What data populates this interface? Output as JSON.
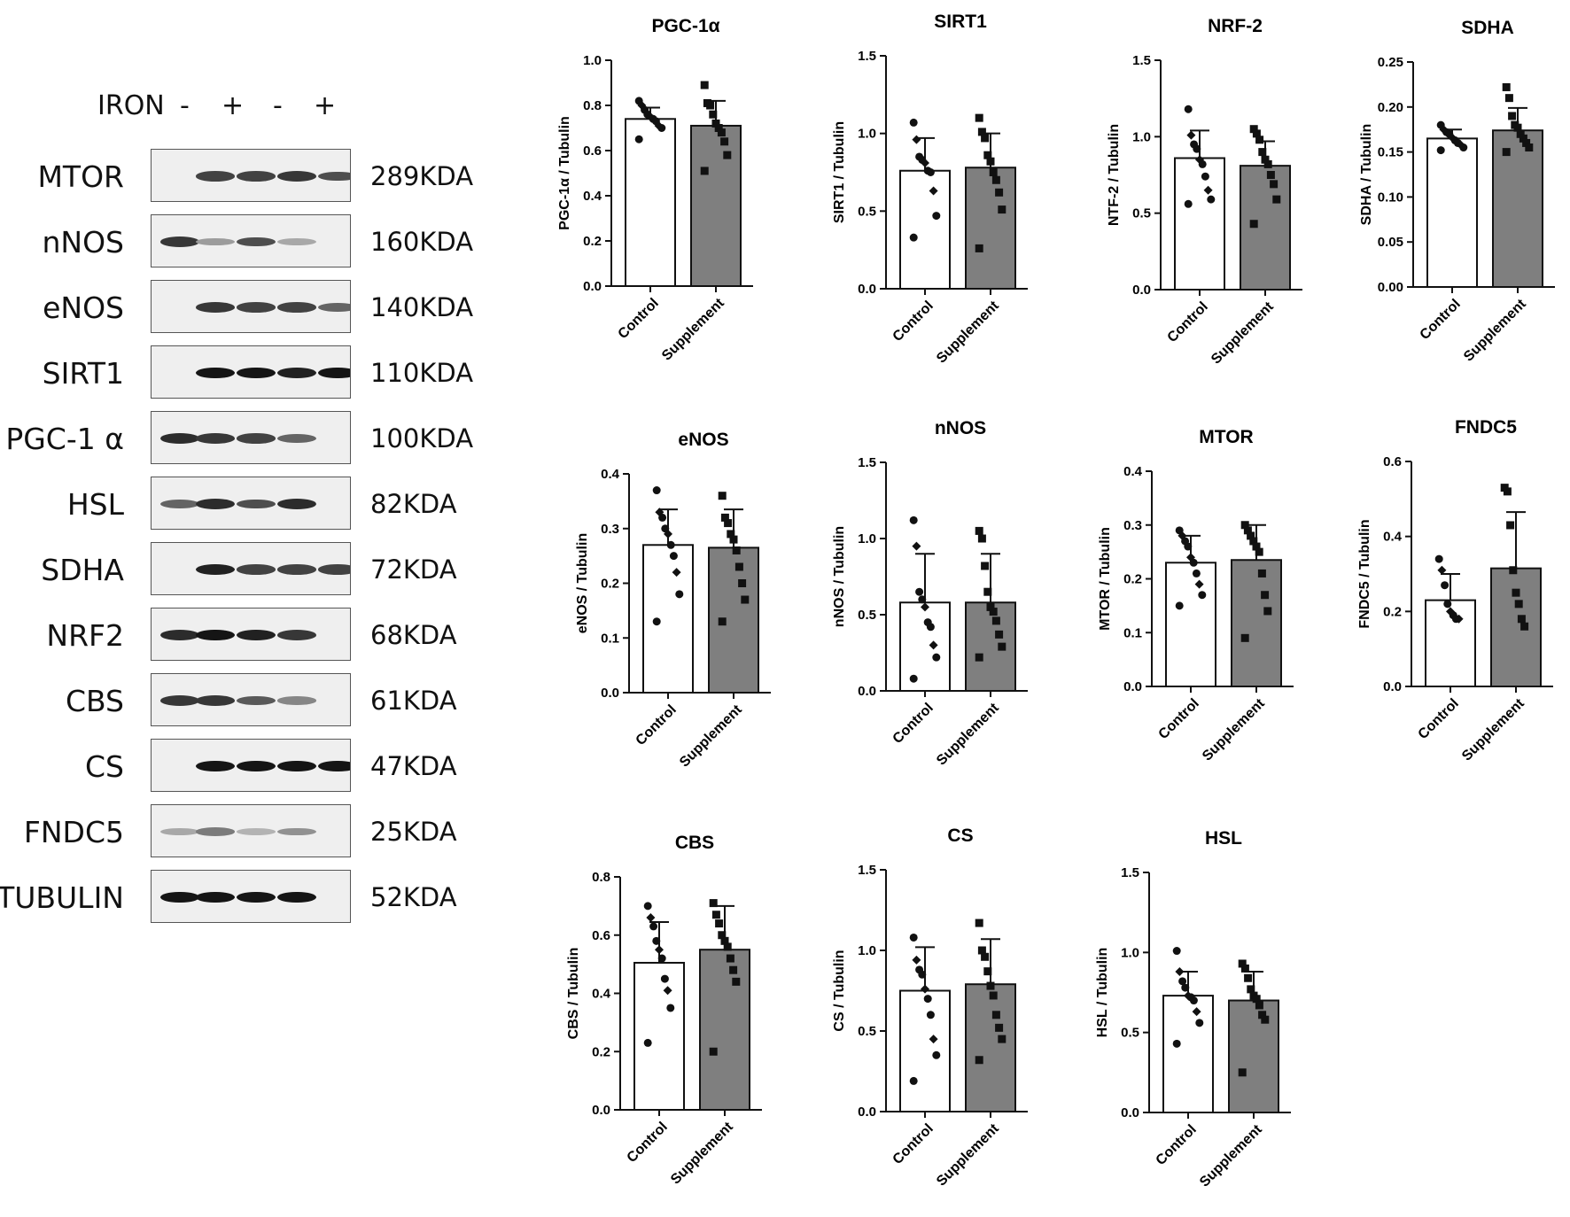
{
  "blot": {
    "iron_label": "IRON",
    "lane_signs": [
      "-",
      "+",
      "-",
      "+"
    ],
    "rows": [
      {
        "label": "MTOR",
        "kda": "289KDA",
        "bands": [
          0,
          0.75,
          0.75,
          0.8,
          0.7
        ]
      },
      {
        "label": "nNOS",
        "kda": "160KDA",
        "bands": [
          0.8,
          0.35,
          0.7,
          0.3,
          0
        ]
      },
      {
        "label": "eNOS",
        "kda": "140KDA",
        "bands": [
          0,
          0.8,
          0.75,
          0.75,
          0.6
        ]
      },
      {
        "label": "SIRT1",
        "kda": "110KDA",
        "bands": [
          0,
          0.95,
          0.95,
          0.9,
          0.95
        ]
      },
      {
        "label": "PGC-1 α",
        "kda": "100KDA",
        "bands": [
          0.85,
          0.8,
          0.75,
          0.6,
          0
        ]
      },
      {
        "label": "HSL",
        "kda": "82KDA",
        "bands": [
          0.6,
          0.85,
          0.7,
          0.85,
          0
        ]
      },
      {
        "label": "SDHA",
        "kda": "72KDA",
        "bands": [
          0,
          0.9,
          0.75,
          0.75,
          0.75
        ]
      },
      {
        "label": "NRF2",
        "kda": "68KDA",
        "bands": [
          0.85,
          0.95,
          0.9,
          0.8,
          0
        ]
      },
      {
        "label": "CBS",
        "kda": "61KDA",
        "bands": [
          0.8,
          0.8,
          0.65,
          0.45,
          0
        ]
      },
      {
        "label": "CS",
        "kda": "47KDA",
        "bands": [
          0,
          0.95,
          0.95,
          0.95,
          0.95
        ]
      },
      {
        "label": "FNDC5",
        "kda": "25KDA",
        "bands": [
          0.3,
          0.5,
          0.25,
          0.4,
          0
        ]
      },
      {
        "label": "TUBULIN",
        "kda": "52KDA",
        "bands": [
          0.95,
          0.95,
          0.95,
          0.95,
          0
        ]
      }
    ]
  },
  "chart_data": [
    {
      "type": "bar",
      "title": "PGC-1α",
      "ylabel": "PGC-1α / Tubulin",
      "categories": [
        "Control",
        "Supplement"
      ],
      "values": [
        0.74,
        0.71
      ],
      "errors": [
        0.05,
        0.11
      ],
      "ylim": [
        0,
        1.0
      ],
      "yticks": [
        0.0,
        0.2,
        0.4,
        0.6,
        0.8,
        1.0
      ],
      "tick_decimals": 1,
      "points": [
        [
          0.82,
          0.8,
          0.78,
          0.76,
          0.75,
          0.74,
          0.73,
          0.71,
          0.7,
          0.65
        ],
        [
          0.89,
          0.81,
          0.8,
          0.76,
          0.72,
          0.7,
          0.68,
          0.64,
          0.58,
          0.51
        ]
      ]
    },
    {
      "type": "bar",
      "title": "SIRT1",
      "ylabel": "SIRT1 / Tubulin",
      "categories": [
        "Control",
        "Supplement"
      ],
      "values": [
        0.76,
        0.78
      ],
      "errors": [
        0.21,
        0.22
      ],
      "ylim": [
        0,
        1.5
      ],
      "yticks": [
        0.0,
        0.5,
        1.0,
        1.5
      ],
      "tick_decimals": 1,
      "points": [
        [
          1.07,
          0.96,
          0.85,
          0.83,
          0.81,
          0.76,
          0.75,
          0.63,
          0.47,
          0.33
        ],
        [
          1.1,
          1.01,
          0.97,
          0.86,
          0.82,
          0.75,
          0.7,
          0.62,
          0.51,
          0.26
        ]
      ]
    },
    {
      "type": "bar",
      "title": "NRF-2",
      "ylabel": "NTF-2 / Tubulin",
      "categories": [
        "Control",
        "Supplement"
      ],
      "values": [
        0.86,
        0.81
      ],
      "errors": [
        0.18,
        0.16
      ],
      "ylim": [
        0,
        1.5
      ],
      "yticks": [
        0.0,
        0.5,
        1.0,
        1.5
      ],
      "tick_decimals": 1,
      "points": [
        [
          1.18,
          1.01,
          0.95,
          0.92,
          0.85,
          0.82,
          0.74,
          0.65,
          0.59,
          0.56
        ],
        [
          1.05,
          1.02,
          0.98,
          0.9,
          0.85,
          0.82,
          0.75,
          0.69,
          0.59,
          0.43
        ]
      ]
    },
    {
      "type": "bar",
      "title": "SDHA",
      "ylabel": "SDHA / Tubulin",
      "categories": [
        "Control",
        "Supplement"
      ],
      "values": [
        0.165,
        0.174
      ],
      "errors": [
        0.01,
        0.025
      ],
      "ylim": [
        0,
        0.25
      ],
      "yticks": [
        0.0,
        0.05,
        0.1,
        0.15,
        0.2,
        0.25
      ],
      "tick_decimals": 2,
      "points": [
        [
          0.18,
          0.175,
          0.172,
          0.17,
          0.166,
          0.163,
          0.16,
          0.158,
          0.155,
          0.152
        ],
        [
          0.222,
          0.21,
          0.19,
          0.18,
          0.177,
          0.17,
          0.165,
          0.16,
          0.155,
          0.15
        ]
      ]
    },
    {
      "type": "bar",
      "title": "eNOS",
      "ylabel": "eNOS / Tubulin",
      "categories": [
        "Control",
        "Supplement"
      ],
      "values": [
        0.27,
        0.265
      ],
      "errors": [
        0.065,
        0.07
      ],
      "ylim": [
        0,
        0.4
      ],
      "yticks": [
        0.0,
        0.1,
        0.2,
        0.3,
        0.4
      ],
      "tick_decimals": 1,
      "points": [
        [
          0.37,
          0.33,
          0.32,
          0.3,
          0.29,
          0.27,
          0.25,
          0.22,
          0.18,
          0.13
        ],
        [
          0.36,
          0.32,
          0.31,
          0.29,
          0.28,
          0.26,
          0.23,
          0.2,
          0.17,
          0.13
        ]
      ]
    },
    {
      "type": "bar",
      "title": "nNOS",
      "ylabel": "nNOS / Tubulin",
      "categories": [
        "Control",
        "Supplement"
      ],
      "values": [
        0.58,
        0.58
      ],
      "errors": [
        0.32,
        0.32
      ],
      "ylim": [
        0,
        1.5
      ],
      "yticks": [
        0.0,
        0.5,
        1.0,
        1.5
      ],
      "tick_decimals": 1,
      "points": [
        [
          1.12,
          0.95,
          0.65,
          0.6,
          0.55,
          0.45,
          0.42,
          0.3,
          0.22,
          0.08
        ],
        [
          1.05,
          1.0,
          0.82,
          0.65,
          0.55,
          0.52,
          0.46,
          0.37,
          0.29,
          0.22
        ]
      ]
    },
    {
      "type": "bar",
      "title": "MTOR",
      "ylabel": "MTOR / Tubulin",
      "categories": [
        "Control",
        "Supplement"
      ],
      "values": [
        0.23,
        0.235
      ],
      "errors": [
        0.05,
        0.065
      ],
      "ylim": [
        0,
        0.4
      ],
      "yticks": [
        0.0,
        0.1,
        0.2,
        0.3,
        0.4
      ],
      "tick_decimals": 1,
      "points": [
        [
          0.29,
          0.28,
          0.27,
          0.26,
          0.24,
          0.23,
          0.21,
          0.19,
          0.17,
          0.15
        ],
        [
          0.3,
          0.29,
          0.28,
          0.27,
          0.26,
          0.25,
          0.21,
          0.17,
          0.14,
          0.09
        ]
      ]
    },
    {
      "type": "bar",
      "title": "FNDC5",
      "ylabel": "FNDC5 / Tubulin",
      "categories": [
        "Control",
        "Supplement"
      ],
      "values": [
        0.23,
        0.315
      ],
      "errors": [
        0.07,
        0.15
      ],
      "ylim": [
        0,
        0.6
      ],
      "yticks": [
        0.0,
        0.2,
        0.4,
        0.6
      ],
      "tick_decimals": 1,
      "points": [
        [
          0.34,
          0.31,
          0.27,
          0.22,
          0.2,
          0.19,
          0.18,
          0.18
        ],
        [
          0.53,
          0.52,
          0.43,
          0.31,
          0.25,
          0.22,
          0.18,
          0.16
        ]
      ]
    },
    {
      "type": "bar",
      "title": "CBS",
      "ylabel": "CBS / Tubulin",
      "categories": [
        "Control",
        "Supplement"
      ],
      "values": [
        0.505,
        0.55
      ],
      "errors": [
        0.14,
        0.15
      ],
      "ylim": [
        0,
        0.8
      ],
      "yticks": [
        0.0,
        0.2,
        0.4,
        0.6,
        0.8
      ],
      "tick_decimals": 1,
      "points": [
        [
          0.7,
          0.66,
          0.63,
          0.58,
          0.55,
          0.52,
          0.45,
          0.41,
          0.35,
          0.23
        ],
        [
          0.71,
          0.67,
          0.64,
          0.6,
          0.58,
          0.56,
          0.52,
          0.48,
          0.44,
          0.2
        ]
      ]
    },
    {
      "type": "bar",
      "title": "CS",
      "ylabel": "CS / Tubulin",
      "categories": [
        "Control",
        "Supplement"
      ],
      "values": [
        0.75,
        0.79
      ],
      "errors": [
        0.27,
        0.28
      ],
      "ylim": [
        0,
        1.5
      ],
      "yticks": [
        0.0,
        0.5,
        1.0,
        1.5
      ],
      "tick_decimals": 1,
      "points": [
        [
          1.08,
          0.94,
          0.88,
          0.85,
          0.76,
          0.7,
          0.6,
          0.45,
          0.35,
          0.19
        ],
        [
          1.17,
          1.0,
          0.96,
          0.87,
          0.78,
          0.72,
          0.6,
          0.52,
          0.45,
          0.32
        ]
      ]
    },
    {
      "type": "bar",
      "title": "HSL",
      "ylabel": "HSL / Tubulin",
      "categories": [
        "Control",
        "Supplement"
      ],
      "values": [
        0.73,
        0.7
      ],
      "errors": [
        0.15,
        0.18
      ],
      "ylim": [
        0,
        1.5
      ],
      "yticks": [
        0.0,
        0.5,
        1.0,
        1.5
      ],
      "tick_decimals": 1,
      "points": [
        [
          1.01,
          0.88,
          0.82,
          0.78,
          0.73,
          0.72,
          0.7,
          0.63,
          0.56,
          0.43
        ],
        [
          0.93,
          0.9,
          0.84,
          0.77,
          0.73,
          0.71,
          0.67,
          0.61,
          0.58,
          0.25
        ]
      ]
    }
  ]
}
